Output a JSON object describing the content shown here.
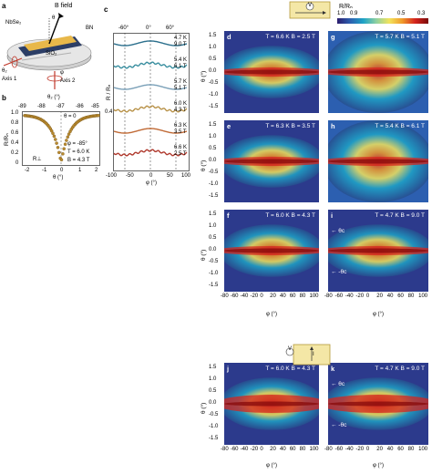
{
  "panels": {
    "a": {
      "letter": "a",
      "labels": [
        "B field",
        "θ",
        "NbSe₂",
        "BN",
        "SiO₂",
        "θ₂",
        "Axis 1",
        "φ",
        "Axis 2"
      ]
    },
    "b": {
      "letter": "b",
      "top_axis_label": "θ₂ (°)",
      "top_ticks": [
        "-89",
        "-88",
        "-87",
        "-86",
        "-85"
      ],
      "ylabel": "R/Rₙ",
      "yticks": [
        "1.0",
        "0.8",
        "0.6",
        "0.4",
        "0.2",
        "0"
      ],
      "xlabel": "θ (°)",
      "xticks": [
        "-2",
        "-1",
        "0",
        "1",
        "2"
      ],
      "annotations": [
        "θ = 0",
        "φ = -85°",
        "T = 6.0 K",
        "B = 4.3 T",
        "R⊥"
      ]
    },
    "c": {
      "letter": "c",
      "ylabel": "R / Rₙ",
      "xlabel": "φ (°)",
      "xticks": [
        "-100",
        "-50",
        "0",
        "50",
        "100"
      ],
      "top_ticks": [
        "-60°",
        "0°",
        "60°"
      ],
      "scale": "0.4",
      "curves": [
        {
          "t": "4.7 K",
          "b": "9.0 T",
          "color": "#2b6f8c"
        },
        {
          "t": "5.4 K",
          "b": "6.1 T",
          "color": "#3a8fa0"
        },
        {
          "t": "5.7 K",
          "b": "5.1 T",
          "color": "#7aa0b8"
        },
        {
          "t": "6.0 K",
          "b": "4.3 T",
          "color": "#b9934a"
        },
        {
          "t": "6.3 K",
          "b": "3.5 T",
          "color": "#c06a36"
        },
        {
          "t": "6.6 K",
          "b": "2.5 T",
          "color": "#b03a2e"
        }
      ]
    },
    "colorbar": {
      "label": "R/Rₙ",
      "ticks": [
        "1.0",
        "0.9",
        "0.7",
        "0.5",
        "0.3"
      ]
    },
    "heatmaps": [
      {
        "letter": "d",
        "title": "T = 6.6 K  B = 2.5 T"
      },
      {
        "letter": "g",
        "title": "T = 5.7 K  B = 5.1 T"
      },
      {
        "letter": "e",
        "title": "T = 6.3 K  B = 3.5 T"
      },
      {
        "letter": "h",
        "title": "T = 5.4 K  B = 6.1 T"
      },
      {
        "letter": "f",
        "title": "T = 6.0 K  B = 4.3 T"
      },
      {
        "letter": "i",
        "title": "T = 4.7 K  B = 9.0 T"
      },
      {
        "letter": "j",
        "title": "T = 6.0 K  B = 4.3 T"
      },
      {
        "letter": "k",
        "title": "T = 4.7 K  B = 9.0 T"
      }
    ],
    "theta_axis": {
      "label": "θ (°)",
      "ticks": [
        "1.5",
        "1.0",
        "0.5",
        "0.0",
        "-0.5",
        "-1.0",
        "-1.5"
      ]
    },
    "phi_axis": {
      "label": "φ (°)",
      "ticks": [
        "-80",
        "-60",
        "-40",
        "-20",
        "0",
        "20",
        "40",
        "60",
        "80",
        "100"
      ]
    },
    "theta_markers": [
      "θc",
      "-θc"
    ],
    "circuit_labels": [
      "V",
      "I"
    ]
  },
  "colors": {
    "low": "#2c1d6e",
    "mid": "#1ea3c6",
    "high": "#d4241d"
  }
}
